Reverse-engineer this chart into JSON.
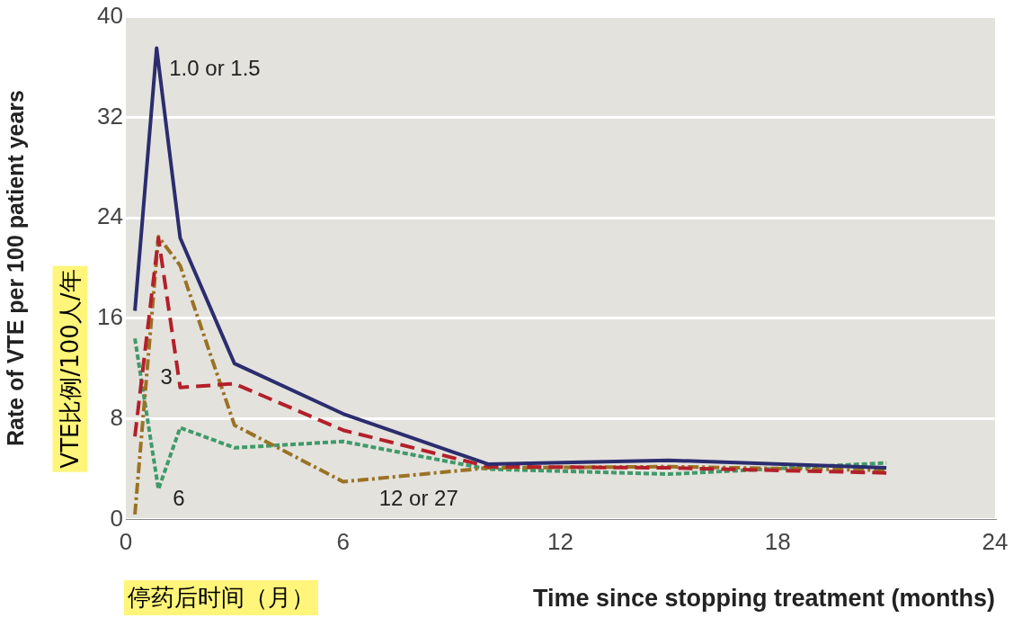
{
  "chart_data": {
    "type": "line",
    "xlabel": "Time since stopping treatment (months)",
    "ylabel": "Rate of VTE per 100 patient years",
    "annotations": [
      "VTE比例/100人/年",
      "停药后时间（月）"
    ],
    "xlim": [
      0,
      24
    ],
    "xticks": [
      0,
      6,
      12,
      18,
      24
    ],
    "ylim": [
      0,
      40
    ],
    "yticks": [
      0,
      8,
      16,
      24,
      32,
      40
    ],
    "grid": "y",
    "legend": false,
    "marker": "none",
    "series": [
      {
        "name": "1.0 or 1.5",
        "color": "#2b2d6e",
        "line_style": "solid",
        "x": [
          0.25,
          0.85,
          1.5,
          3,
          6,
          10,
          15,
          21
        ],
        "values": [
          16.6,
          37.5,
          22.4,
          12.4,
          8.4,
          4.4,
          4.7,
          4.1
        ]
      },
      {
        "name": "3",
        "color": "#b3202a",
        "line_style": "dashed",
        "x": [
          0.25,
          0.9,
          1.5,
          3,
          6,
          10,
          15,
          21
        ],
        "values": [
          6.6,
          22.4,
          10.5,
          10.8,
          7.1,
          4.2,
          4.1,
          3.7
        ]
      },
      {
        "name": "12 or 27",
        "color": "#9a7224",
        "line_style": "dashdot",
        "x": [
          0.25,
          0.9,
          1.5,
          3,
          6,
          10,
          15,
          21
        ],
        "values": [
          0.4,
          22.5,
          20.2,
          7.5,
          3.0,
          4.1,
          4.2,
          3.9
        ]
      },
      {
        "name": "6",
        "color": "#3f9a6a",
        "line_style": "dotted",
        "x": [
          0.25,
          0.9,
          1.5,
          3,
          6,
          10,
          15,
          21
        ],
        "values": [
          14.4,
          2.4,
          7.3,
          5.7,
          6.2,
          4.0,
          3.6,
          4.5
        ]
      }
    ]
  }
}
